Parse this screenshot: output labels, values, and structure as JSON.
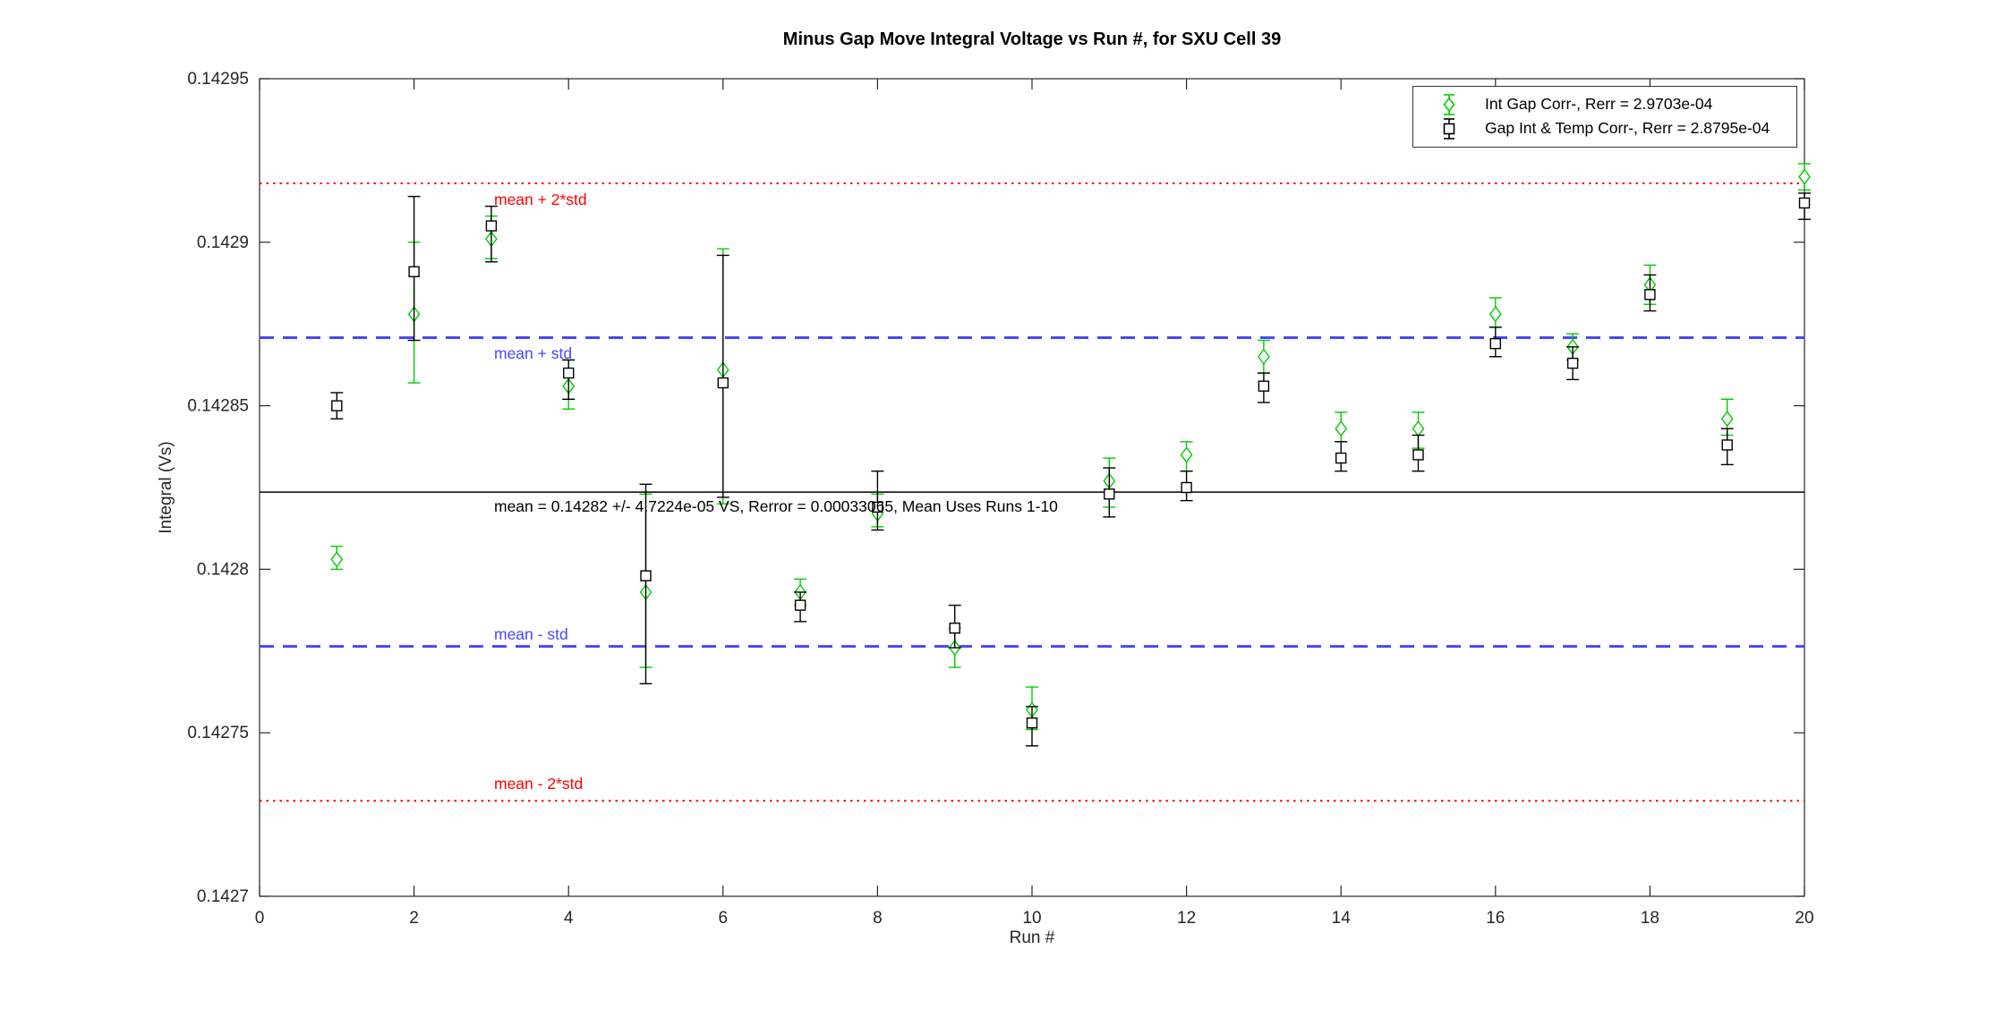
{
  "figure": {
    "title": "Minus Gap Move Integral Voltage vs Run #, for SXU Cell 39"
  },
  "legend": {
    "entries": [
      {
        "label": "Int Gap Corr-, Rerr = 2.9703e-04",
        "marker": "diamond",
        "color": "#00cc00"
      },
      {
        "label": "Gap Int & Temp Corr-, Rerr = 2.8795e-04",
        "marker": "square",
        "color": "#000000"
      }
    ]
  },
  "chart_data": {
    "type": "scatter",
    "subtype": "errorbar",
    "title": "Minus Gap Move Integral Voltage vs Run #, for SXU Cell 39",
    "xlabel": "Run #",
    "ylabel": "Integral (Vs)",
    "xlim": [
      0,
      20
    ],
    "ylim": [
      0.1427,
      0.14295
    ],
    "grid": false,
    "legend_position": "top-right",
    "x_ticks": [
      0,
      2,
      4,
      6,
      8,
      10,
      12,
      14,
      16,
      18,
      20
    ],
    "y_ticks": [
      {
        "value": 0.1427,
        "label": "0.1427"
      },
      {
        "value": 0.14275,
        "label": "0.14275"
      },
      {
        "value": 0.1428,
        "label": "0.1428"
      },
      {
        "value": 0.14285,
        "label": "0.14285"
      },
      {
        "value": 0.1429,
        "label": "0.1429"
      },
      {
        "value": 0.14295,
        "label": "0.14295"
      }
    ],
    "x": [
      1,
      2,
      3,
      4,
      5,
      6,
      7,
      8,
      9,
      10,
      11,
      12,
      13,
      14,
      15,
      16,
      17,
      18,
      19,
      20
    ],
    "series": [
      {
        "name": "Int Gap Corr-",
        "legend_label": "Int Gap Corr-, Rerr = 2.9703e-04",
        "rerr": "2.9703e-04",
        "marker": "diamond",
        "color": "#00cc00",
        "values": [
          0.142803,
          0.142878,
          0.142901,
          0.142856,
          0.142793,
          0.142861,
          0.142793,
          0.142817,
          0.142776,
          0.142757,
          0.142827,
          0.142835,
          0.142865,
          0.142843,
          0.142843,
          0.142878,
          0.142868,
          0.142887,
          0.142846,
          0.14292
        ],
        "err_lo": [
          0.1428,
          0.142857,
          0.142895,
          0.142849,
          0.14277,
          0.14282,
          0.142789,
          0.142813,
          0.14277,
          0.142751,
          0.142819,
          0.14283,
          0.14286,
          0.142839,
          0.142837,
          0.142874,
          0.142864,
          0.142881,
          0.142841,
          0.142916
        ],
        "err_hi": [
          0.142807,
          0.1429,
          0.142908,
          0.142864,
          0.142823,
          0.142898,
          0.142797,
          0.142823,
          0.142782,
          0.142764,
          0.142834,
          0.142839,
          0.14287,
          0.142848,
          0.142848,
          0.142883,
          0.142872,
          0.142893,
          0.142852,
          0.142924
        ]
      },
      {
        "name": "Gap Int & Temp Corr-",
        "legend_label": "Gap Int & Temp Corr-, Rerr = 2.8795e-04",
        "rerr": "2.8795e-04",
        "marker": "square",
        "color": "#000000",
        "values": [
          0.14285,
          0.142891,
          0.142905,
          0.14286,
          0.142798,
          0.142857,
          0.142789,
          0.142819,
          0.142782,
          0.142753,
          0.142823,
          0.142825,
          0.142856,
          0.142834,
          0.142835,
          0.142869,
          0.142863,
          0.142884,
          0.142838,
          0.142912
        ],
        "err_lo": [
          0.142846,
          0.14287,
          0.142894,
          0.142852,
          0.142765,
          0.142822,
          0.142784,
          0.142812,
          0.142776,
          0.142746,
          0.142816,
          0.142821,
          0.142851,
          0.14283,
          0.14283,
          0.142865,
          0.142858,
          0.142879,
          0.142832,
          0.142907
        ],
        "err_hi": [
          0.142854,
          0.142914,
          0.142911,
          0.142864,
          0.142826,
          0.142896,
          0.142793,
          0.14283,
          0.142789,
          0.142758,
          0.142831,
          0.14283,
          0.14286,
          0.142839,
          0.142841,
          0.142874,
          0.142868,
          0.14289,
          0.142843,
          0.142915
        ]
      }
    ],
    "ref_lines": [
      {
        "label": "mean + 2*std",
        "value": 0.142918,
        "color": "#ff0000",
        "style": "dotted"
      },
      {
        "label": "mean + std",
        "value": 0.1428708,
        "color": "#4747ff",
        "style": "dashed"
      },
      {
        "label": "mean = 0.14282 +/- 4.7224e-05 VS, Rerror = 0.00033065, Mean Uses Runs 1-10",
        "value": 0.1428236,
        "color": "#000000",
        "style": "solid"
      },
      {
        "label": "mean - std",
        "value": 0.1427764,
        "color": "#4747ff",
        "style": "dashed"
      },
      {
        "label": "mean - 2*std",
        "value": 0.1427292,
        "color": "#ff0000",
        "style": "dotted"
      }
    ],
    "mean": 0.14282,
    "std": 4.7224e-05,
    "rerror": 0.00033065,
    "mean_uses_runs": "1-10"
  }
}
